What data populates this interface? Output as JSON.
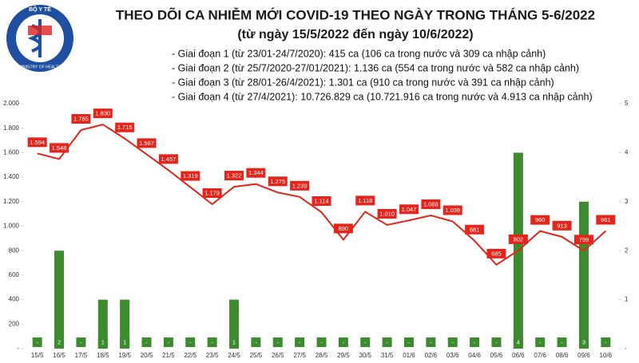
{
  "logo": {
    "top": "BỘ Y TẾ",
    "bottom": "MINISTRY OF HEALTH"
  },
  "chart_data": {
    "type": "combo",
    "title": "THEO DÕI CA NHIỄM MỚI COVID-19 THEO NGÀY TRONG THÁNG 5-6/2022",
    "subtitle": "(từ ngày 15/5/2022 đến ngày 10/6/2022)",
    "annotations": [
      "- Giai đoạn 1 (từ 23/01-24/7/2020): 415 ca (106 ca trong nước và 309 ca nhập cảnh)",
      "- Giai đoạn 2 (từ 25/7/2020-27/01/2021): 1.136 ca (554 ca trong nước và 582 ca nhập cảnh)",
      "- Giai đoạn 3 (từ 28/01-26/4/2021): 1.301 ca (910 ca trong nước và 391 ca nhập cảnh)",
      "- Giai đoạn 4 (từ 27/4/2021): 10.726.829 ca (10.721.916 ca trong nước và 4.913 ca nhập cảnh)"
    ],
    "categories": [
      "15/5",
      "16/5",
      "17/5",
      "18/5",
      "19/5",
      "20/5",
      "21/5",
      "22/5",
      "23/5",
      "24/5",
      "25/5",
      "26/5",
      "27/5",
      "28/5",
      "29/5",
      "30/5",
      "31/5",
      "01/6",
      "02/6",
      "03/6",
      "04/6",
      "05/6",
      "06/6",
      "07/6",
      "08/6",
      "09/6",
      "10/6"
    ],
    "series": [
      {
        "type": "bar",
        "axis": "y2",
        "color": "#3d8b2f",
        "values": [
          0,
          2,
          0,
          1,
          1,
          0,
          0,
          0,
          0,
          1,
          0,
          0,
          0,
          0,
          0,
          0,
          0,
          0,
          0,
          0,
          0,
          0,
          4,
          0,
          0,
          3,
          0
        ],
        "value_labels": [
          "-",
          "2",
          "-",
          "1",
          "1",
          "-",
          "-",
          "-",
          "-",
          "1",
          "-",
          "-",
          "-",
          "-",
          "-",
          "-",
          "-",
          "-",
          "-",
          "-",
          "-",
          "-",
          "4",
          "-",
          "-",
          "3",
          "-"
        ]
      },
      {
        "type": "line",
        "color": "#e3251c",
        "values": [
          1594,
          1548,
          1785,
          1830,
          1715,
          1587,
          1457,
          1319,
          1179,
          1322,
          1344,
          1275,
          1239,
          1114,
          890,
          1118,
          1010,
          1047,
          1088,
          1039,
          881,
          685,
          802,
          960,
          913,
          799,
          961
        ],
        "value_labels": [
          "1.594",
          "1.548",
          "1.785",
          "1.830",
          "1.715",
          "1.587",
          "1.457",
          "1.319",
          "1.179",
          "1.322",
          "1.344",
          "1.275",
          "1.239",
          "1.114",
          "890",
          "1.118",
          "1.010",
          "1.047",
          "1.088",
          "1.039",
          "881",
          "685",
          "802",
          "960",
          "913",
          "799",
          "961"
        ]
      }
    ],
    "ylim": [
      0,
      2000
    ],
    "yticks": [
      {
        "value": 0,
        "label": "-"
      },
      200,
      400,
      600,
      800,
      {
        "value": 1000,
        "label": "1.000"
      },
      {
        "value": 1200,
        "label": "1.200"
      },
      {
        "value": 1400,
        "label": "1.400"
      },
      {
        "value": 1600,
        "label": "1.600"
      },
      {
        "value": 1800,
        "label": "1.800"
      },
      {
        "value": 2000,
        "label": "2.000"
      }
    ],
    "y2lim": [
      0,
      5
    ],
    "y2ticks": [
      {
        "value": 0,
        "label": "-"
      },
      1,
      2,
      3,
      4,
      5
    ]
  }
}
